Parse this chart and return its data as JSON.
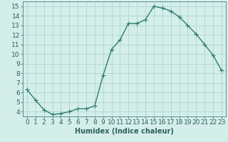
{
  "x": [
    0,
    1,
    2,
    3,
    4,
    5,
    6,
    7,
    8,
    9,
    10,
    11,
    12,
    13,
    14,
    15,
    16,
    17,
    18,
    19,
    20,
    21,
    22,
    23
  ],
  "y": [
    6.3,
    5.2,
    4.2,
    3.7,
    3.8,
    4.0,
    4.3,
    4.3,
    4.6,
    7.8,
    10.5,
    11.5,
    13.2,
    13.2,
    13.6,
    15.0,
    14.8,
    14.5,
    13.9,
    13.0,
    12.1,
    11.0,
    9.9,
    8.3
  ],
  "line_color": "#2e7d6e",
  "marker": "+",
  "marker_size": 4,
  "linewidth": 1.0,
  "background_color": "#d4eeea",
  "grid_color": "#aed6d0",
  "xlabel": "Humidex (Indice chaleur)",
  "xlim": [
    -0.5,
    23.5
  ],
  "ylim": [
    3.5,
    15.5
  ],
  "xticks": [
    0,
    1,
    2,
    3,
    4,
    5,
    6,
    7,
    8,
    9,
    10,
    11,
    12,
    13,
    14,
    15,
    16,
    17,
    18,
    19,
    20,
    21,
    22,
    23
  ],
  "yticks": [
    4,
    5,
    6,
    7,
    8,
    9,
    10,
    11,
    12,
    13,
    14,
    15
  ],
  "xlabel_fontsize": 7,
  "tick_fontsize": 6.5
}
